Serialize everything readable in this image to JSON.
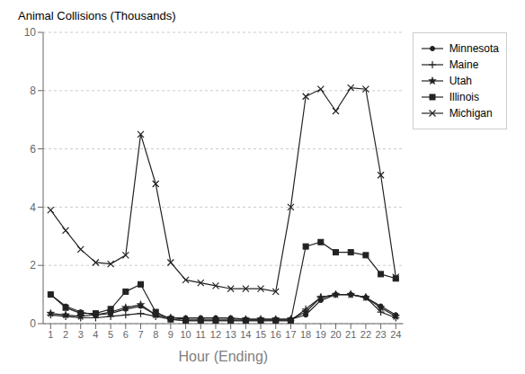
{
  "chart_data": {
    "type": "line",
    "xlabel": "Hour (Ending)",
    "ylabel": "Animal Collisions (Thousands)",
    "x": [
      1,
      2,
      3,
      4,
      5,
      6,
      7,
      8,
      9,
      10,
      11,
      12,
      13,
      14,
      15,
      16,
      17,
      18,
      19,
      20,
      21,
      22,
      23,
      24
    ],
    "series": [
      {
        "name": "Minnesota",
        "color": "#222222",
        "marker": "point",
        "line_style": "solid",
        "values": [
          1.0,
          0.6,
          0.4,
          0.3,
          0.35,
          0.5,
          0.6,
          0.3,
          0.2,
          0.2,
          0.2,
          0.2,
          0.2,
          0.15,
          0.15,
          0.15,
          0.15,
          0.3,
          0.8,
          1.0,
          1.0,
          0.9,
          0.6,
          0.3
        ]
      },
      {
        "name": "Maine",
        "color": "#222222",
        "marker": "plus",
        "line_style": "solid",
        "values": [
          0.3,
          0.25,
          0.2,
          0.2,
          0.25,
          0.3,
          0.35,
          0.25,
          0.15,
          0.1,
          0.1,
          0.1,
          0.1,
          0.1,
          0.1,
          0.1,
          0.1,
          0.5,
          0.9,
          1.0,
          1.0,
          0.9,
          0.4,
          0.2
        ]
      },
      {
        "name": "Utah",
        "color": "#222222",
        "marker": "star",
        "line_style": "solid",
        "values": [
          0.35,
          0.3,
          0.25,
          0.3,
          0.4,
          0.55,
          0.65,
          0.3,
          0.2,
          0.15,
          0.15,
          0.15,
          0.15,
          0.15,
          0.15,
          0.15,
          0.15,
          0.4,
          0.9,
          1.0,
          1.0,
          0.9,
          0.55,
          0.25
        ]
      },
      {
        "name": "Illinois",
        "color": "#222222",
        "marker": "square",
        "line_style": "solid",
        "values": [
          1.0,
          0.55,
          0.35,
          0.35,
          0.5,
          1.1,
          1.35,
          0.4,
          0.15,
          0.1,
          0.1,
          0.1,
          0.1,
          0.1,
          0.1,
          0.1,
          0.1,
          2.65,
          2.8,
          2.45,
          2.45,
          2.35,
          1.7,
          1.55
        ]
      },
      {
        "name": "Michigan",
        "color": "#222222",
        "marker": "x",
        "line_style": "solid",
        "values": [
          3.9,
          3.2,
          2.55,
          2.1,
          2.05,
          2.35,
          6.5,
          4.8,
          2.1,
          1.5,
          1.4,
          1.3,
          1.2,
          1.2,
          1.2,
          1.1,
          4.0,
          7.8,
          8.05,
          7.3,
          8.1,
          8.05,
          5.1,
          1.6
        ]
      }
    ],
    "xlim": [
      0.5,
      24.5
    ],
    "xticks": [
      1,
      2,
      3,
      4,
      5,
      6,
      7,
      8,
      9,
      10,
      11,
      12,
      13,
      14,
      15,
      16,
      17,
      18,
      19,
      20,
      21,
      22,
      23,
      24
    ],
    "ylim": [
      0,
      10
    ],
    "yticks": [
      0,
      2,
      4,
      6,
      8,
      10
    ],
    "grid": "y",
    "legend": "right"
  }
}
